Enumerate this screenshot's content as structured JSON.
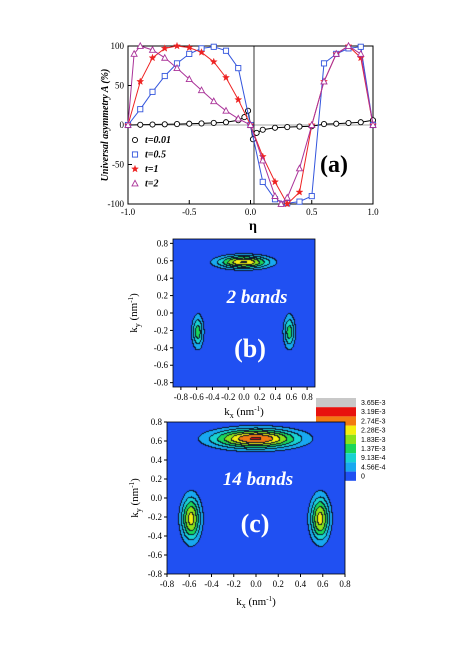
{
  "chart_data": [
    {
      "type": "line",
      "panel_label": "(a)",
      "xlabel": "η",
      "ylabel": "Universal asymmetry A (%)",
      "xlim": [
        -1.0,
        1.0
      ],
      "ylim": [
        -100,
        100
      ],
      "x_ticks": [
        "-1.0",
        "-0.5",
        "0.0",
        "0.5",
        "1.0"
      ],
      "y_ticks": [
        "100",
        "50",
        "0",
        "-50",
        "-100"
      ],
      "legend_position": "lower-left",
      "series": [
        {
          "name": "t=0.01",
          "color": "#000000",
          "marker": "circle",
          "x": [
            -1.0,
            -0.9,
            -0.8,
            -0.7,
            -0.6,
            -0.5,
            -0.4,
            -0.3,
            -0.2,
            -0.1,
            -0.05,
            -0.02,
            0.0,
            0.02,
            0.05,
            0.1,
            0.2,
            0.3,
            0.4,
            0.5,
            0.6,
            0.7,
            0.8,
            0.9,
            1.0
          ],
          "y": [
            0,
            0.3,
            0.6,
            0.9,
            1.2,
            1.6,
            2,
            2.6,
            3.5,
            6,
            10,
            18,
            0,
            -18,
            -10,
            -6,
            -3.5,
            -2.6,
            -2,
            -1.6,
            1.2,
            1.6,
            2.5,
            3.5,
            6
          ]
        },
        {
          "name": "t=0.5",
          "color": "#3355dd",
          "marker": "square",
          "x": [
            -1.0,
            -0.9,
            -0.8,
            -0.7,
            -0.6,
            -0.5,
            -0.4,
            -0.3,
            -0.2,
            -0.1,
            0.0,
            0.1,
            0.2,
            0.3,
            0.4,
            0.5,
            0.6,
            0.7,
            0.8,
            0.9,
            1.0
          ],
          "y": [
            0,
            20,
            42,
            62,
            78,
            90,
            97,
            99,
            94,
            72,
            0,
            -72,
            -94,
            -99,
            -97,
            -90,
            78,
            90,
            97,
            99,
            0
          ]
        },
        {
          "name": "t=1",
          "color": "#ee2222",
          "marker": "star",
          "x": [
            -1.0,
            -0.9,
            -0.8,
            -0.7,
            -0.6,
            -0.5,
            -0.4,
            -0.3,
            -0.2,
            -0.1,
            0.0,
            0.1,
            0.2,
            0.3,
            0.4,
            0.5,
            0.6,
            0.7,
            0.8,
            0.9,
            1.0
          ],
          "y": [
            0,
            55,
            85,
            97,
            100,
            98,
            92,
            80,
            60,
            32,
            0,
            -40,
            -72,
            -100,
            -85,
            0,
            55,
            90,
            100,
            85,
            0
          ]
        },
        {
          "name": "t=2",
          "color": "#aa3399",
          "marker": "triangle",
          "x": [
            -1.0,
            -0.95,
            -0.9,
            -0.8,
            -0.7,
            -0.6,
            -0.5,
            -0.4,
            -0.3,
            -0.2,
            -0.1,
            0.0,
            0.1,
            0.2,
            0.25,
            0.3,
            0.4,
            0.5,
            0.6,
            0.7,
            0.8,
            0.9,
            1.0
          ],
          "y": [
            0,
            90,
            100,
            95,
            85,
            72,
            58,
            44,
            30,
            18,
            8,
            0,
            -45,
            -90,
            -100,
            -92,
            -55,
            0,
            55,
            90,
            100,
            90,
            0
          ]
        }
      ]
    },
    {
      "type": "heatmap",
      "panel_label": "(b)",
      "annotation": "2 bands",
      "xlabel": "k",
      "xlabel_sub": "x",
      "xlabel_unit": " (nm",
      "xlabel_unit_sup": "-1",
      "xlabel_close": ")",
      "ylabel": "k",
      "ylabel_sub": "y",
      "ylabel_unit": " (nm",
      "ylabel_unit_sup": "-1",
      "ylabel_close": ")",
      "xlim": [
        -0.9,
        0.9
      ],
      "ylim": [
        -0.85,
        0.85
      ],
      "x_ticks": [
        "-0.8",
        "-0.6",
        "-0.4",
        "-0.2",
        "0.0",
        "0.2",
        "0.4",
        "0.6",
        "0.8"
      ],
      "y_ticks": [
        "0.8",
        "0.6",
        "0.4",
        "0.2",
        "0.0",
        "-0.2",
        "-0.4",
        "-0.6",
        "-0.8"
      ],
      "peaks": [
        {
          "x": 0.0,
          "y": 0.58,
          "sx": 0.22,
          "sy": 0.05,
          "amp": 0.72
        },
        {
          "x": -0.58,
          "y": -0.22,
          "sx": 0.05,
          "sy": 0.13,
          "amp": 0.42
        },
        {
          "x": 0.58,
          "y": -0.22,
          "sx": 0.05,
          "sy": 0.13,
          "amp": 0.42
        }
      ]
    },
    {
      "type": "heatmap",
      "panel_label": "(c)",
      "annotation": "14 bands",
      "xlabel": "k",
      "xlabel_sub": "x",
      "xlabel_unit": " (nm",
      "xlabel_unit_sup": "-1",
      "xlabel_close": ")",
      "ylabel": "k",
      "ylabel_sub": "y",
      "ylabel_unit": " (nm",
      "ylabel_unit_sup": "-1",
      "ylabel_close": ")",
      "xlim": [
        -0.8,
        0.8
      ],
      "ylim": [
        -0.8,
        0.8
      ],
      "x_ticks": [
        "-0.8",
        "-0.6",
        "-0.4",
        "-0.2",
        "0.0",
        "0.2",
        "0.4",
        "0.6",
        "0.8"
      ],
      "y_ticks": [
        "0.8",
        "0.6",
        "0.4",
        "0.2",
        "0.0",
        "-0.2",
        "-0.4",
        "-0.6",
        "-0.8"
      ],
      "peaks": [
        {
          "x": 0.0,
          "y": 0.62,
          "sx": 0.26,
          "sy": 0.07,
          "amp": 0.84
        },
        {
          "x": -0.58,
          "y": -0.22,
          "sx": 0.06,
          "sy": 0.16,
          "amp": 0.64
        },
        {
          "x": 0.58,
          "y": -0.22,
          "sx": 0.06,
          "sy": 0.16,
          "amp": 0.64
        }
      ]
    }
  ],
  "colorbar": {
    "labels": [
      "3.65E-3",
      "3.19E-3",
      "2.74E-3",
      "2.28E-3",
      "1.83E-3",
      "1.37E-3",
      "9.13E-4",
      "4.56E-4",
      "0"
    ],
    "colors": [
      "#c8c8c8",
      "#e8120e",
      "#f27a12",
      "#f4ee10",
      "#8ae21a",
      "#1ad65a",
      "#18d2d2",
      "#18a8f0",
      "#2050f2"
    ]
  }
}
